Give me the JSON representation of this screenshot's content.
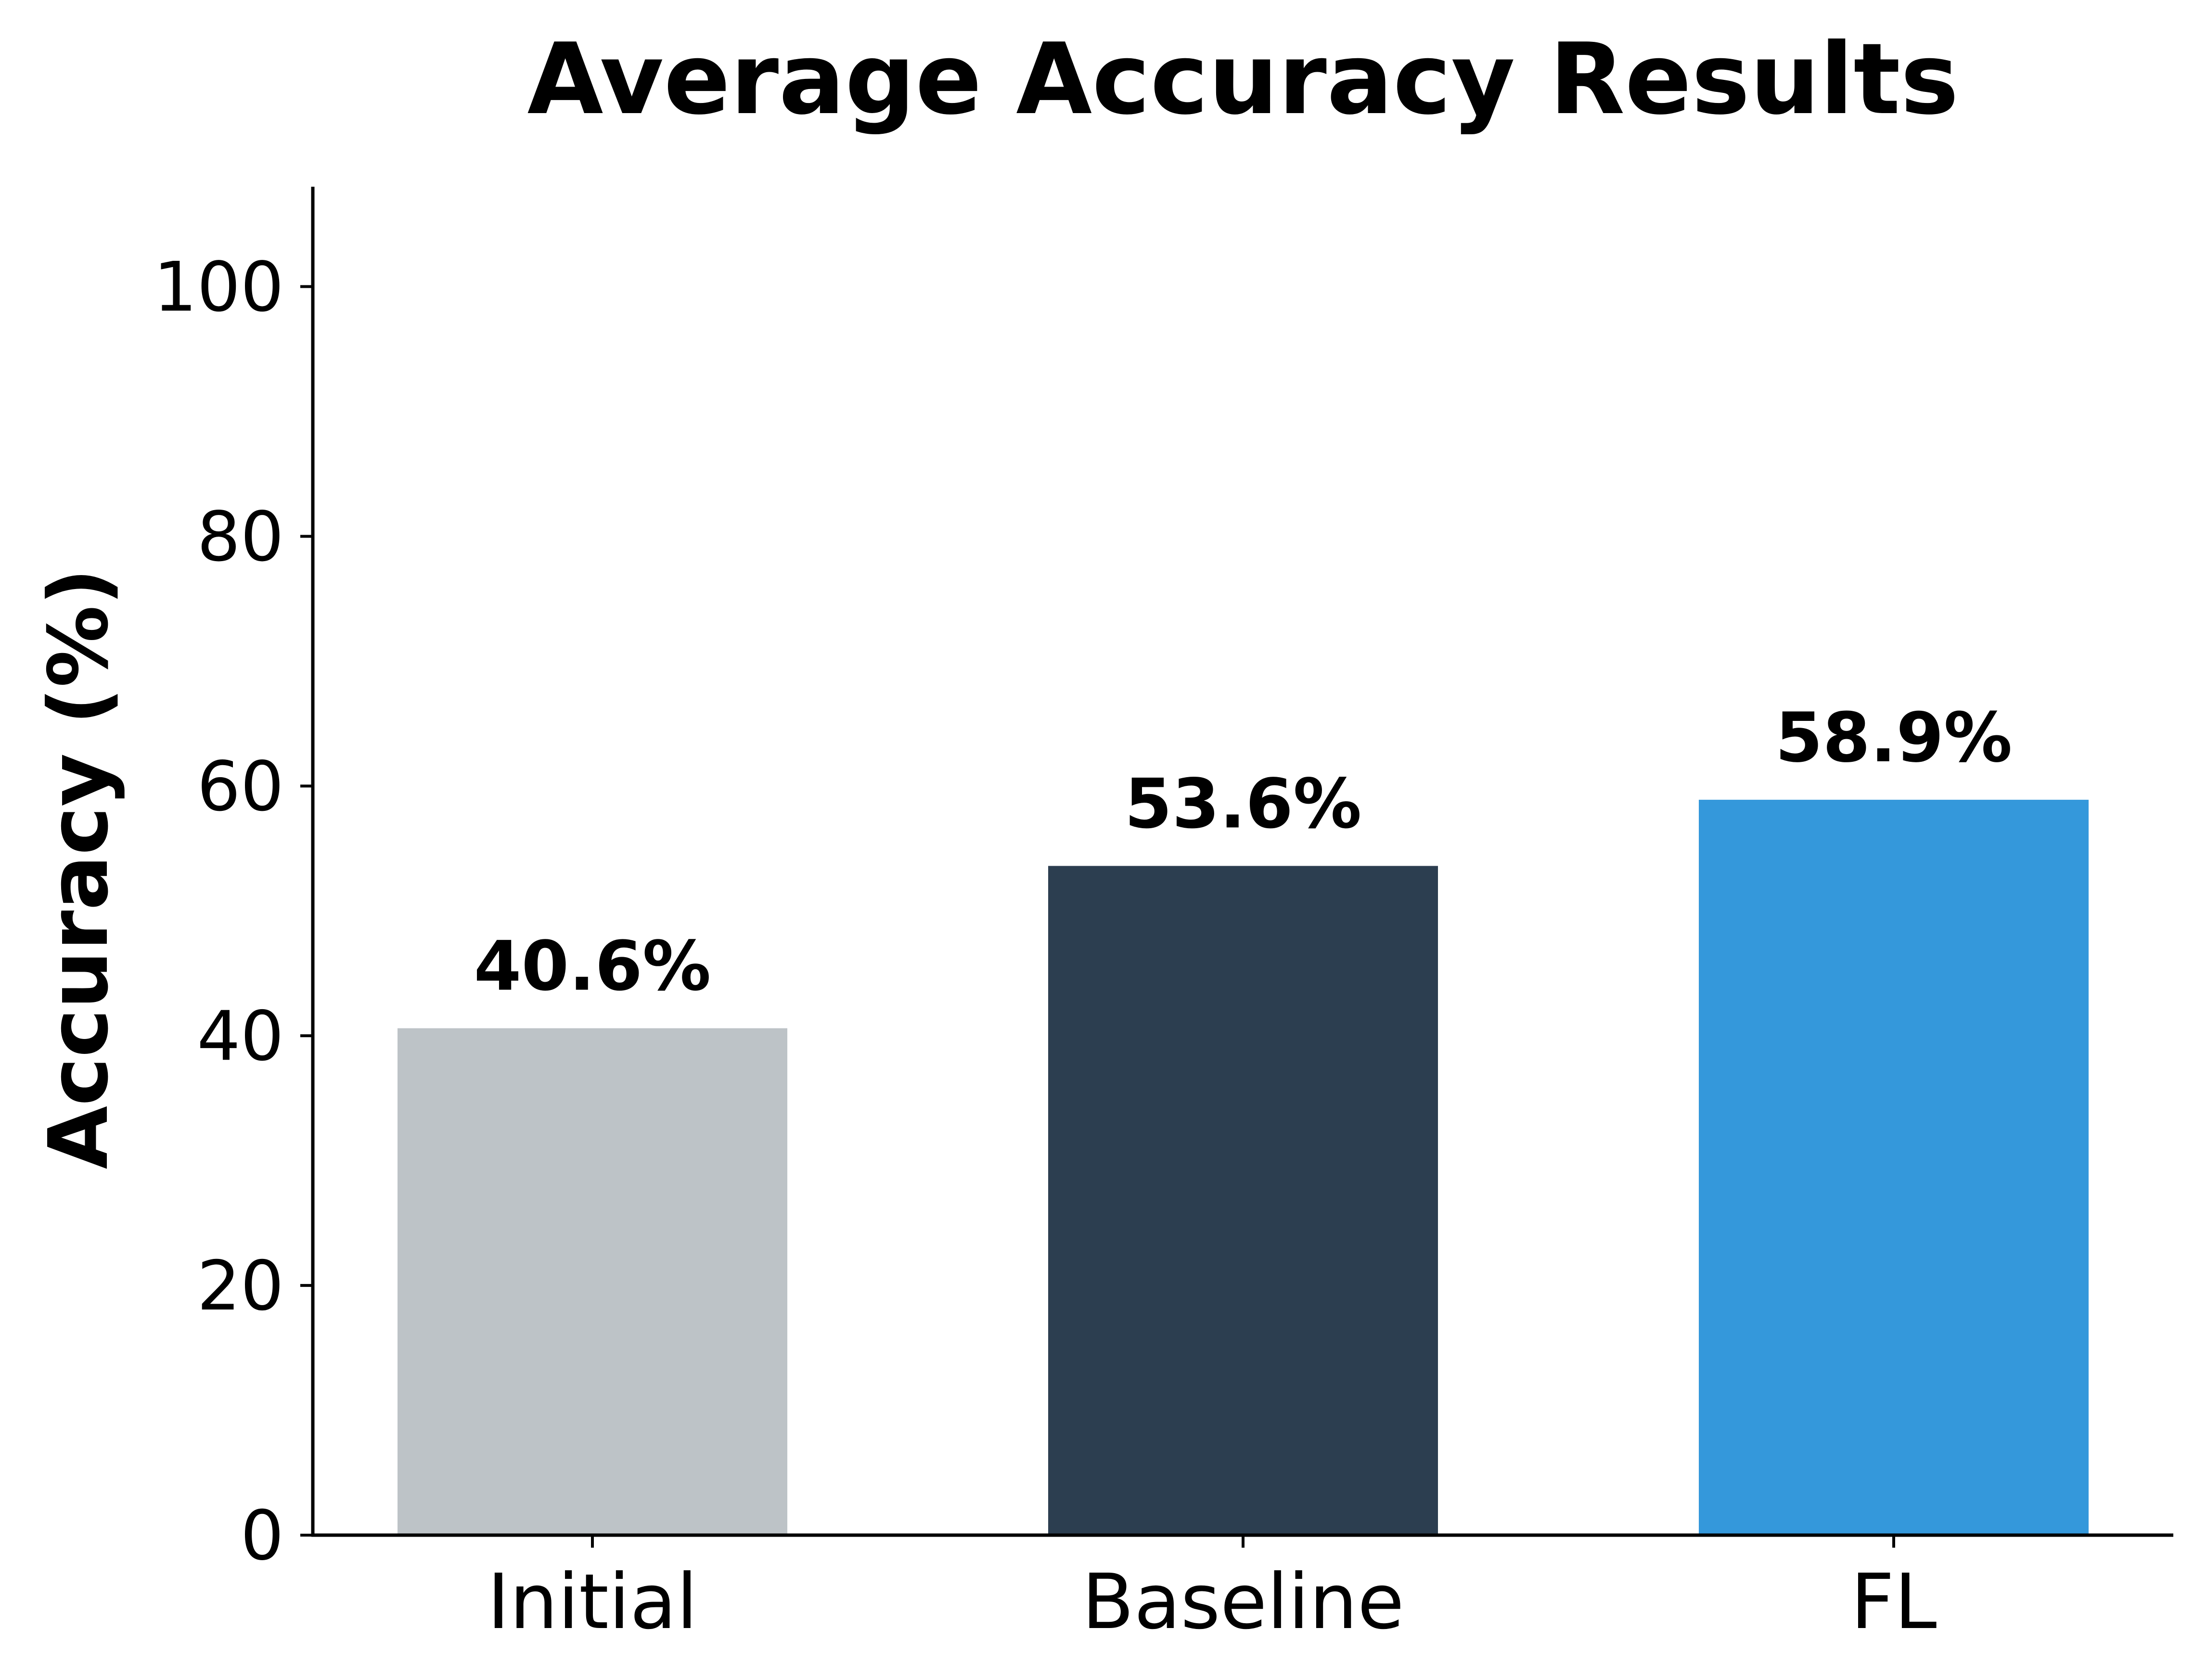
{
  "chart_data": {
    "type": "bar",
    "title": "Average Accuracy Results",
    "xlabel": "",
    "ylabel": "Accuracy (%)",
    "categories": [
      "Initial",
      "Baseline",
      "FL"
    ],
    "values": [
      40.6,
      53.6,
      58.9
    ],
    "value_labels": [
      "40.6%",
      "53.6%",
      "58.9%"
    ],
    "colors": [
      "#bdc3c7",
      "#2c3e50",
      "#3498db"
    ],
    "ylim": [
      0,
      108
    ],
    "yticks": [
      0,
      20,
      40,
      60,
      80,
      100
    ],
    "ytick_labels": [
      "0",
      "20",
      "40",
      "60",
      "80",
      "100"
    ],
    "grid": false,
    "legend": false
  }
}
